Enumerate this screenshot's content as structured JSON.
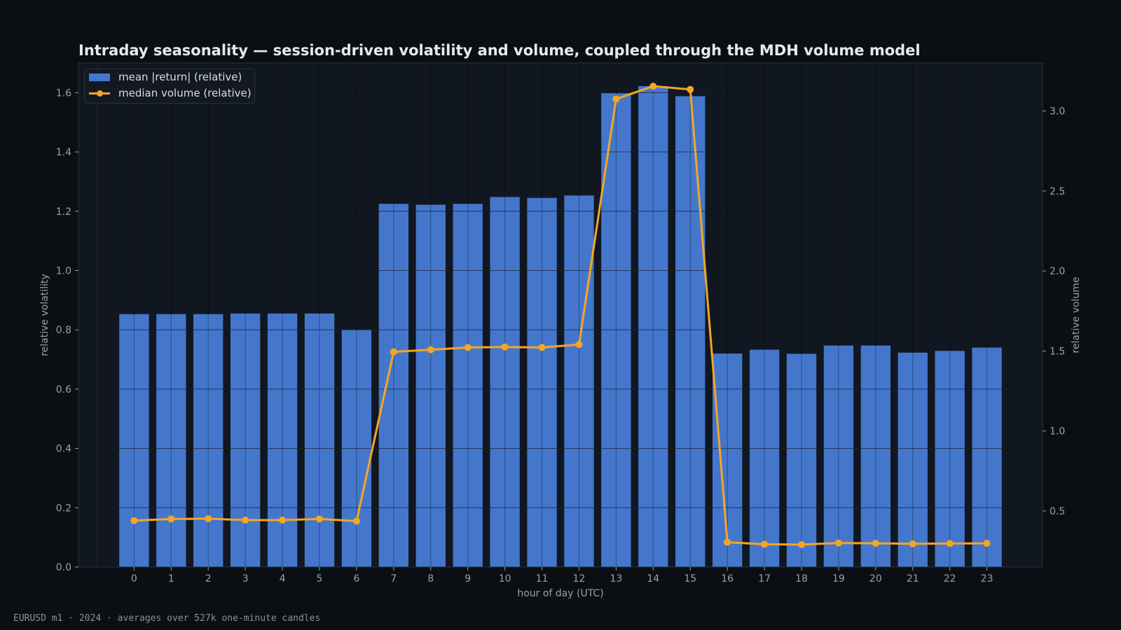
{
  "chart_data": {
    "type": "bar",
    "title": "Intraday seasonality — session-driven volatility and volume, coupled through the MDH volume model",
    "xlabel": "hour of day (UTC)",
    "ylabel": "relative volatility",
    "y2label": "relative volume",
    "categories": [
      "0",
      "1",
      "2",
      "3",
      "4",
      "5",
      "6",
      "7",
      "8",
      "9",
      "10",
      "11",
      "12",
      "13",
      "14",
      "15",
      "16",
      "17",
      "18",
      "19",
      "20",
      "21",
      "22",
      "23"
    ],
    "ylim": [
      0,
      1.7
    ],
    "y2lim": [
      0.15,
      3.3
    ],
    "yticks": [
      "0.0",
      "0.2",
      "0.4",
      "0.6",
      "0.8",
      "1.0",
      "1.2",
      "1.4",
      "1.6"
    ],
    "y2ticks": [
      "0.5",
      "1.0",
      "1.5",
      "2.0",
      "2.5",
      "3.0"
    ],
    "grid": true,
    "legend_position": "top-left",
    "series": [
      {
        "name": "mean |return| (relative)",
        "kind": "bar",
        "axis": "left",
        "color": "#4477cc",
        "values": [
          0.853,
          0.853,
          0.853,
          0.855,
          0.855,
          0.855,
          0.8,
          1.225,
          1.222,
          1.225,
          1.248,
          1.245,
          1.253,
          1.598,
          1.622,
          1.588,
          0.72,
          0.733,
          0.719,
          0.747,
          0.747,
          0.723,
          0.729,
          0.74
        ]
      },
      {
        "name": "median volume (relative)",
        "kind": "line",
        "axis": "right",
        "color": "#f5a623",
        "values": [
          0.44,
          0.45,
          0.452,
          0.443,
          0.443,
          0.45,
          0.437,
          1.495,
          1.508,
          1.522,
          1.525,
          1.522,
          1.54,
          3.075,
          3.155,
          3.135,
          0.305,
          0.292,
          0.29,
          0.3,
          0.298,
          0.295,
          0.297,
          0.298
        ]
      }
    ]
  },
  "footer_note": "EURUSD m1 · 2024 · averages over 527k one-minute candles",
  "colors": {
    "background": "#0b0e13",
    "plot_background": "#111720",
    "grid": "#232a35",
    "axis_text": "#9aa1ab",
    "bar": "#4477cc",
    "line": "#f5a623"
  }
}
